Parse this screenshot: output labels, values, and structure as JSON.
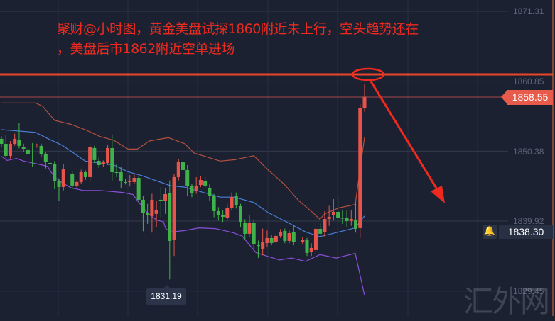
{
  "annotation": {
    "line1": "聚财@小时图，黄金美盘试探1860附近未上行，空头趋势还在",
    "line2": "，美盘后市1862附近空单进场"
  },
  "price_axis": {
    "ticks": [
      "1871.31",
      "1860.85",
      "1850.38",
      "1839.92",
      "1829.45"
    ],
    "last_price": "1858.55",
    "alert_price": "1838.30",
    "alert_icon": "bell-icon"
  },
  "low_marker": "1831.19",
  "watermark": "汇外网",
  "colors": {
    "up": "#e8544a",
    "down": "#3fb34a",
    "upper_band": "#b4503f",
    "middle_band": "#4a7fd6",
    "lower_band": "#8a4fd8",
    "resistance": "#e8452c",
    "annotation": "#ee2a1f"
  },
  "chart_data": {
    "type": "candlestick",
    "timeframe_note": "小时图",
    "ylim": [
      1827.5,
      1873.0
    ],
    "yticks": [
      1871.31,
      1860.85,
      1850.38,
      1839.92,
      1829.45
    ],
    "grid": true,
    "candle_format": [
      "open",
      "high",
      "low",
      "close"
    ],
    "candles": [
      [
        1852.23,
        1852.6,
        1851.0,
        1851.48
      ],
      [
        1851.48,
        1852.8,
        1849.3,
        1849.68
      ],
      [
        1849.68,
        1851.9,
        1849.3,
        1851.48
      ],
      [
        1851.48,
        1853.0,
        1851.2,
        1852.23
      ],
      [
        1852.01,
        1854.6,
        1850.8,
        1851.17
      ],
      [
        1850.95,
        1851.5,
        1850.3,
        1850.74
      ],
      [
        1850.64,
        1850.9,
        1849.8,
        1850.0
      ],
      [
        1851.38,
        1851.6,
        1848.0,
        1851.27
      ],
      [
        1851.27,
        1851.5,
        1850.9,
        1851.38
      ],
      [
        1851.17,
        1851.5,
        1849.6,
        1849.89
      ],
      [
        1850.0,
        1850.3,
        1847.8,
        1848.83
      ],
      [
        1848.62,
        1848.9,
        1846.0,
        1848.52
      ],
      [
        1848.52,
        1848.9,
        1844.7,
        1845.86
      ],
      [
        1845.86,
        1846.3,
        1843.0,
        1845.02
      ],
      [
        1845.02,
        1848.4,
        1844.5,
        1847.67
      ],
      [
        1847.45,
        1848.5,
        1845.8,
        1847.35
      ],
      [
        1847.03,
        1847.4,
        1844.7,
        1845.23
      ],
      [
        1845.23,
        1846.0,
        1845.0,
        1845.76
      ],
      [
        1845.76,
        1847.6,
        1845.5,
        1847.24
      ],
      [
        1847.24,
        1847.5,
        1846.1,
        1846.5
      ],
      [
        1846.5,
        1851.5,
        1845.8,
        1850.95
      ],
      [
        1850.85,
        1851.2,
        1848.6,
        1849.05
      ],
      [
        1848.94,
        1849.4,
        1847.9,
        1848.3
      ],
      [
        1848.41,
        1849.0,
        1848.0,
        1848.73
      ],
      [
        1848.62,
        1851.3,
        1848.3,
        1850.85
      ],
      [
        1850.85,
        1852.9,
        1846.0,
        1847.24
      ],
      [
        1847.24,
        1848.5,
        1846.5,
        1847.14
      ],
      [
        1847.24,
        1848.0,
        1844.9,
        1845.86
      ],
      [
        1845.76,
        1846.2,
        1845.4,
        1845.7
      ],
      [
        1845.76,
        1846.8,
        1845.1,
        1845.97
      ],
      [
        1845.76,
        1846.9,
        1845.5,
        1846.39
      ],
      [
        1846.39,
        1846.6,
        1842.6,
        1843.11
      ],
      [
        1843.11,
        1843.7,
        1838.4,
        1841.09
      ],
      [
        1841.09,
        1842.5,
        1839.5,
        1840.88
      ],
      [
        1840.67,
        1844.0,
        1838.2,
        1843.11
      ],
      [
        1841.0,
        1843.0,
        1839.0,
        1841.6
      ],
      [
        1843.11,
        1845.0,
        1840.5,
        1842.89
      ],
      [
        1842.89,
        1844.8,
        1841.0,
        1843.95
      ],
      [
        1844.06,
        1846.0,
        1831.19,
        1836.96
      ],
      [
        1837.17,
        1847.0,
        1834.7,
        1846.5
      ],
      [
        1846.5,
        1849.2,
        1846.0,
        1848.83
      ],
      [
        1848.73,
        1850.8,
        1847.2,
        1847.56
      ],
      [
        1847.56,
        1848.3,
        1843.7,
        1845.12
      ],
      [
        1845.12,
        1845.5,
        1843.5,
        1844.17
      ],
      [
        1844.38,
        1846.5,
        1844.0,
        1845.23
      ],
      [
        1845.33,
        1846.7,
        1845.0,
        1846.08
      ],
      [
        1845.97,
        1846.5,
        1844.8,
        1845.23
      ],
      [
        1844.91,
        1845.4,
        1843.0,
        1843.64
      ],
      [
        1843.64,
        1844.0,
        1840.5,
        1841.41
      ],
      [
        1841.41,
        1842.0,
        1840.0,
        1840.88
      ],
      [
        1840.88,
        1841.6,
        1839.8,
        1840.56
      ],
      [
        1840.46,
        1842.5,
        1840.0,
        1841.94
      ],
      [
        1841.94,
        1844.2,
        1841.5,
        1843.53
      ],
      [
        1843.64,
        1844.2,
        1841.8,
        1842.26
      ],
      [
        1842.15,
        1842.5,
        1839.0,
        1839.82
      ],
      [
        1839.71,
        1840.2,
        1837.2,
        1838.02
      ],
      [
        1838.02,
        1840.8,
        1837.5,
        1839.71
      ],
      [
        1839.71,
        1840.2,
        1835.5,
        1836.43
      ],
      [
        1836.3,
        1837.0,
        1834.4,
        1836.21
      ],
      [
        1835.79,
        1838.8,
        1834.8,
        1836.74
      ],
      [
        1836.64,
        1838.5,
        1836.0,
        1837.38
      ],
      [
        1837.38,
        1837.8,
        1836.3,
        1836.64
      ],
      [
        1836.85,
        1838.0,
        1836.5,
        1837.7
      ],
      [
        1837.7,
        1838.7,
        1837.4,
        1838.33
      ],
      [
        1838.44,
        1838.8,
        1836.6,
        1836.96
      ],
      [
        1836.96,
        1838.5,
        1836.6,
        1838.12
      ],
      [
        1838.23,
        1839.3,
        1836.3,
        1836.74
      ],
      [
        1836.85,
        1838.6,
        1835.5,
        1836.8
      ],
      [
        1836.74,
        1837.5,
        1836.4,
        1837.06
      ],
      [
        1837.06,
        1837.4,
        1834.7,
        1835.15
      ],
      [
        1835.26,
        1836.6,
        1834.7,
        1835.9
      ],
      [
        1835.58,
        1841.0,
        1835.0,
        1838.76
      ],
      [
        1838.76,
        1839.6,
        1837.6,
        1838.02
      ],
      [
        1838.23,
        1841.4,
        1837.6,
        1840.24
      ],
      [
        1840.24,
        1842.2,
        1839.2,
        1840.56
      ],
      [
        1840.77,
        1843.2,
        1840.0,
        1841.3
      ],
      [
        1841.3,
        1843.4,
        1839.6,
        1840.35
      ],
      [
        1840.4,
        1841.5,
        1839.5,
        1840.35
      ],
      [
        1840.35,
        1841.5,
        1839.1,
        1839.93
      ],
      [
        1839.93,
        1841.6,
        1839.2,
        1840.24
      ],
      [
        1840.14,
        1842.8,
        1838.2,
        1838.76
      ],
      [
        1838.87,
        1857.4,
        1837.4,
        1856.79
      ],
      [
        1856.79,
        1860.5,
        1856.3,
        1858.55
      ]
    ],
    "bollinger": {
      "upper": [
        [
          0,
          1857.6
        ],
        [
          7.7,
          1857.6
        ],
        [
          9.3,
          1857.1
        ],
        [
          12.0,
          1855.0
        ],
        [
          15.7,
          1854.4
        ],
        [
          18.9,
          1853.6
        ],
        [
          22.2,
          1852.6
        ],
        [
          25.4,
          1852.0
        ],
        [
          28.6,
          1850.7
        ],
        [
          30.7,
          1850.7
        ],
        [
          33.4,
          1851.9
        ],
        [
          37.7,
          1852.4
        ],
        [
          41.4,
          1851.5
        ],
        [
          43.5,
          1850.1
        ],
        [
          49.4,
          1848.9
        ],
        [
          52.7,
          1849.1
        ],
        [
          57.0,
          1849.7
        ],
        [
          60.2,
          1847.6
        ],
        [
          63.9,
          1845.4
        ],
        [
          67.1,
          1843.0
        ],
        [
          70.3,
          1841.2
        ],
        [
          71.9,
          1840.2
        ],
        [
          73.0,
          1841.0
        ],
        [
          76.2,
          1841.9
        ],
        [
          79.9,
          1842.4
        ],
        [
          82.0,
          1852.5
        ]
      ],
      "middle": [
        [
          0,
          1853.6
        ],
        [
          7.7,
          1853.2
        ],
        [
          10.4,
          1852.3
        ],
        [
          13.6,
          1851.3
        ],
        [
          15.7,
          1850.4
        ],
        [
          18.9,
          1848.9
        ],
        [
          22.2,
          1848.6
        ],
        [
          25.4,
          1848.3
        ],
        [
          28.6,
          1847.3
        ],
        [
          31.8,
          1846.7
        ],
        [
          36.1,
          1845.7
        ],
        [
          38.2,
          1845.2
        ],
        [
          41.4,
          1845.0
        ],
        [
          44.6,
          1844.4
        ],
        [
          49.4,
          1843.5
        ],
        [
          52.6,
          1843.5
        ],
        [
          57.0,
          1842.7
        ],
        [
          60.2,
          1841.2
        ],
        [
          64.4,
          1839.8
        ],
        [
          68.7,
          1838.3
        ],
        [
          71.9,
          1837.6
        ],
        [
          76.2,
          1838.3
        ],
        [
          79.9,
          1838.9
        ],
        [
          82.0,
          1840.7
        ]
      ],
      "lower": [
        [
          0,
          1849.6
        ],
        [
          1.3,
          1849.0
        ],
        [
          3.4,
          1849.3
        ],
        [
          5.0,
          1848.9
        ],
        [
          9.3,
          1848.3
        ],
        [
          10.4,
          1848.1
        ],
        [
          12.0,
          1846.5
        ],
        [
          13.6,
          1845.7
        ],
        [
          15.7,
          1844.9
        ],
        [
          18.5,
          1844.5
        ],
        [
          22.2,
          1844.5
        ],
        [
          27.4,
          1844.2
        ],
        [
          29.7,
          1843.9
        ],
        [
          30.7,
          1843.0
        ],
        [
          32.9,
          1841.2
        ],
        [
          35.0,
          1840.1
        ],
        [
          36.6,
          1839.8
        ],
        [
          37.1,
          1838.8
        ],
        [
          38.2,
          1838.3
        ],
        [
          41.4,
          1838.5
        ],
        [
          44.6,
          1838.9
        ],
        [
          48.3,
          1838.8
        ],
        [
          52.2,
          1838.2
        ],
        [
          54.3,
          1837.7
        ],
        [
          57.5,
          1835.2
        ],
        [
          62.8,
          1834.1
        ],
        [
          65.5,
          1834.4
        ],
        [
          68.7,
          1833.9
        ],
        [
          71.9,
          1834.9
        ],
        [
          75.6,
          1834.4
        ],
        [
          79.9,
          1835.1
        ],
        [
          82.0,
          1828.8
        ]
      ]
    },
    "resistance_level": 1862,
    "last_price": 1858.55,
    "low": 1831.19
  }
}
